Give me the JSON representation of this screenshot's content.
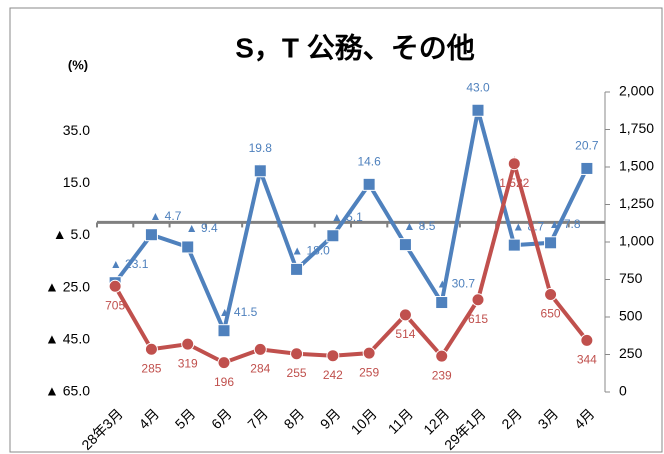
{
  "chart_data": {
    "type": "line",
    "title": "S，T 公務、その他",
    "y_label": "(%)",
    "categories": [
      "28年3月",
      "4月",
      "5月",
      "6月",
      "7月",
      "8月",
      "9月",
      "10月",
      "11月",
      "12月",
      "29年1月",
      "2月",
      "3月",
      "4月"
    ],
    "series": [
      {
        "color": "#4f81bd",
        "values": [
          -23.1,
          -4.7,
          -9.4,
          -41.5,
          19.8,
          -18.0,
          -5.1,
          14.6,
          -8.5,
          -30.7,
          43.0,
          -8.7,
          -7.8,
          20.7
        ],
        "value_labels": [
          "▲ 23.1",
          "▲ 4.7",
          "▲ 9.4",
          "▲ 41.5",
          "19.8",
          "▲ 18.0",
          "▲ 5.1",
          "14.6",
          "▲ 8.5",
          "▲ 30.7",
          "43.0",
          "▲ 8.7",
          "▲ 7.8",
          "20.7"
        ],
        "marker": "square"
      },
      {
        "color": "#c0504d",
        "axis": "y2",
        "values": [
          705,
          285,
          319,
          196,
          284,
          255,
          242,
          259,
          514,
          239,
          615,
          1522,
          650,
          344
        ],
        "value_labels": [
          "705",
          "285",
          "319",
          "196",
          "284",
          "255",
          "242",
          "259",
          "514",
          "239",
          "615",
          "1,522",
          "650",
          "344"
        ],
        "marker": "circle"
      }
    ],
    "ylim": [
      -65,
      50
    ],
    "yticks": [
      {
        "value": 35,
        "label": "35.0"
      },
      {
        "value": 15,
        "label": "15.0"
      },
      {
        "value": -5,
        "label": "▲ 5.0"
      },
      {
        "value": -25,
        "label": "▲ 25.0"
      },
      {
        "value": -45,
        "label": "▲ 45.0"
      },
      {
        "value": -65,
        "label": "▲ 65.0"
      }
    ],
    "y2lim": [
      0,
      2000
    ],
    "y2ticks": [
      {
        "value": 2000,
        "label": "2,000"
      },
      {
        "value": 1750,
        "label": "1,750"
      },
      {
        "value": 1500,
        "label": "1,500"
      },
      {
        "value": 1250,
        "label": "1,250"
      },
      {
        "value": 1000,
        "label": "1,000"
      },
      {
        "value": 750,
        "label": "750"
      },
      {
        "value": 500,
        "label": "500"
      },
      {
        "value": 250,
        "label": "250"
      },
      0
    ],
    "grid": false
  }
}
